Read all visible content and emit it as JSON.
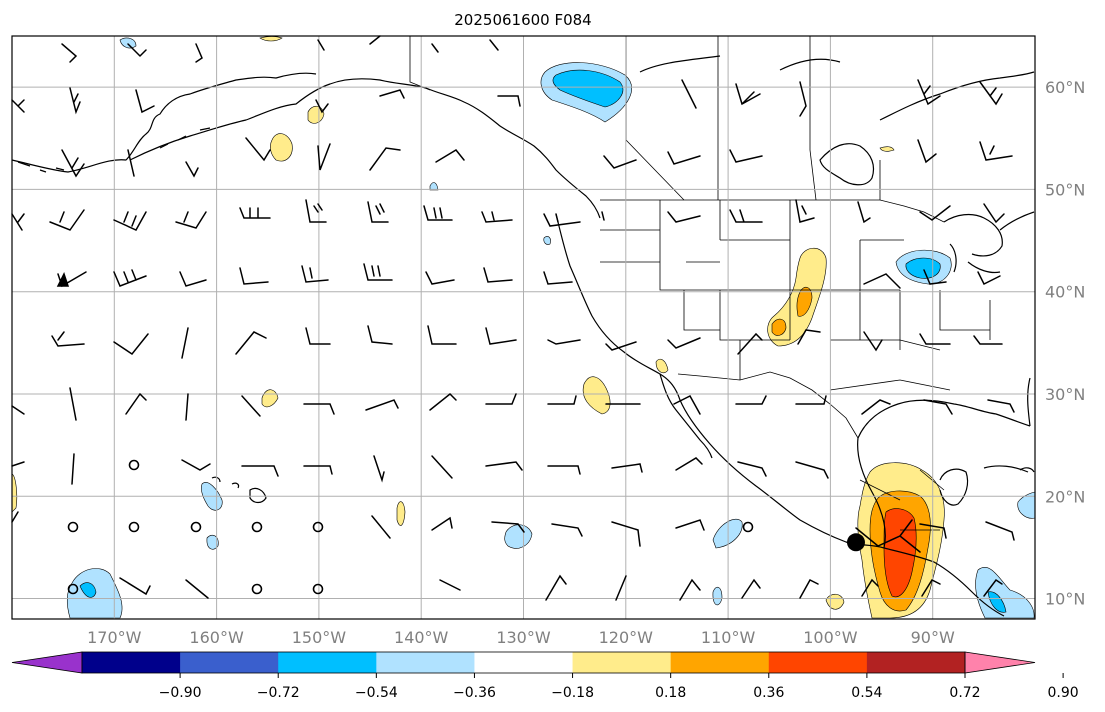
{
  "title": "2025061600 F084",
  "map": {
    "lon_range": [
      -180,
      -80
    ],
    "lat_range": [
      8,
      65
    ],
    "lon_ticks": [
      {
        "value": -170,
        "label": "170°W"
      },
      {
        "value": -160,
        "label": "160°W"
      },
      {
        "value": -150,
        "label": "150°W"
      },
      {
        "value": -140,
        "label": "140°W"
      },
      {
        "value": -130,
        "label": "130°W"
      },
      {
        "value": -120,
        "label": "120°W"
      },
      {
        "value": -110,
        "label": "110°W"
      },
      {
        "value": -100,
        "label": "100°W"
      },
      {
        "value": -90,
        "label": "90°W"
      }
    ],
    "lat_ticks": [
      {
        "value": 60,
        "label": "60°N"
      },
      {
        "value": 50,
        "label": "50°N"
      },
      {
        "value": 40,
        "label": "40°N"
      },
      {
        "value": 30,
        "label": "30°N"
      },
      {
        "value": 20,
        "label": "20°N"
      },
      {
        "value": 10,
        "label": "10°N"
      }
    ],
    "grid": true,
    "marker": {
      "lon": -97.5,
      "lat": 15.5
    }
  },
  "colorbar": {
    "colors": [
      "#9932cc",
      "#00008b",
      "#3a5fcd",
      "#00bfff",
      "#b0e2ff",
      "#ffffff",
      "#ffec8b",
      "#ffa500",
      "#ff4500",
      "#b22222",
      "#ff82ab"
    ],
    "tick_labels": [
      "−0.90",
      "−0.72",
      "−0.54",
      "−0.36",
      "−0.18",
      "0.18",
      "0.36",
      "0.54",
      "0.72",
      "0.90"
    ]
  },
  "colors": {
    "coast": "#000000",
    "grid": "#b0b0b0",
    "tick_label": "#808080"
  }
}
